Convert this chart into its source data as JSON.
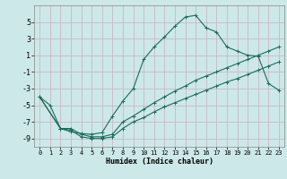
{
  "xlabel": "Humidex (Indice chaleur)",
  "bg_color": "#cde8e8",
  "grid_color": "#b0d4d4",
  "line_color": "#1a6b5a",
  "xlim": [
    -0.5,
    23.5
  ],
  "ylim": [
    -10,
    7
  ],
  "xticks": [
    0,
    1,
    2,
    3,
    4,
    5,
    6,
    7,
    8,
    9,
    10,
    11,
    12,
    13,
    14,
    15,
    16,
    17,
    18,
    19,
    20,
    21,
    22,
    23
  ],
  "yticks": [
    -9,
    -7,
    -5,
    -3,
    -1,
    1,
    3,
    5
  ],
  "line1_x": [
    0,
    1,
    2,
    3,
    4,
    5,
    6,
    7,
    8,
    9,
    10,
    11,
    12,
    13,
    14,
    15,
    16,
    17,
    18,
    19,
    20,
    21,
    22,
    23
  ],
  "line1_y": [
    -4.0,
    -5.0,
    -7.8,
    -8.2,
    -8.4,
    -8.5,
    -8.3,
    -6.3,
    -4.5,
    -3.0,
    0.5,
    2.0,
    3.2,
    4.5,
    5.6,
    5.8,
    4.3,
    3.8,
    2.0,
    1.5,
    1.0,
    0.9,
    -2.4,
    -3.2
  ],
  "line2_x": [
    0,
    2,
    3,
    4,
    5,
    6,
    7,
    8,
    9,
    10,
    11,
    12,
    13,
    14,
    15,
    16,
    17,
    18,
    19,
    20,
    21,
    22,
    23
  ],
  "line2_y": [
    -4.0,
    -7.8,
    -7.8,
    -8.5,
    -8.8,
    -8.8,
    -8.5,
    -7.0,
    -6.3,
    -5.5,
    -4.7,
    -4.0,
    -3.3,
    -2.7,
    -2.0,
    -1.5,
    -1.0,
    -0.5,
    0.0,
    0.5,
    1.0,
    1.5,
    2.0
  ],
  "line3_x": [
    0,
    2,
    3,
    4,
    5,
    6,
    7,
    8,
    9,
    10,
    11,
    12,
    13,
    14,
    15,
    16,
    17,
    18,
    19,
    20,
    21,
    22,
    23
  ],
  "line3_y": [
    -4.0,
    -7.8,
    -8.0,
    -8.8,
    -9.0,
    -9.0,
    -8.8,
    -7.8,
    -7.0,
    -6.5,
    -5.8,
    -5.2,
    -4.7,
    -4.2,
    -3.7,
    -3.2,
    -2.7,
    -2.2,
    -1.8,
    -1.3,
    -0.8,
    -0.3,
    0.2
  ]
}
